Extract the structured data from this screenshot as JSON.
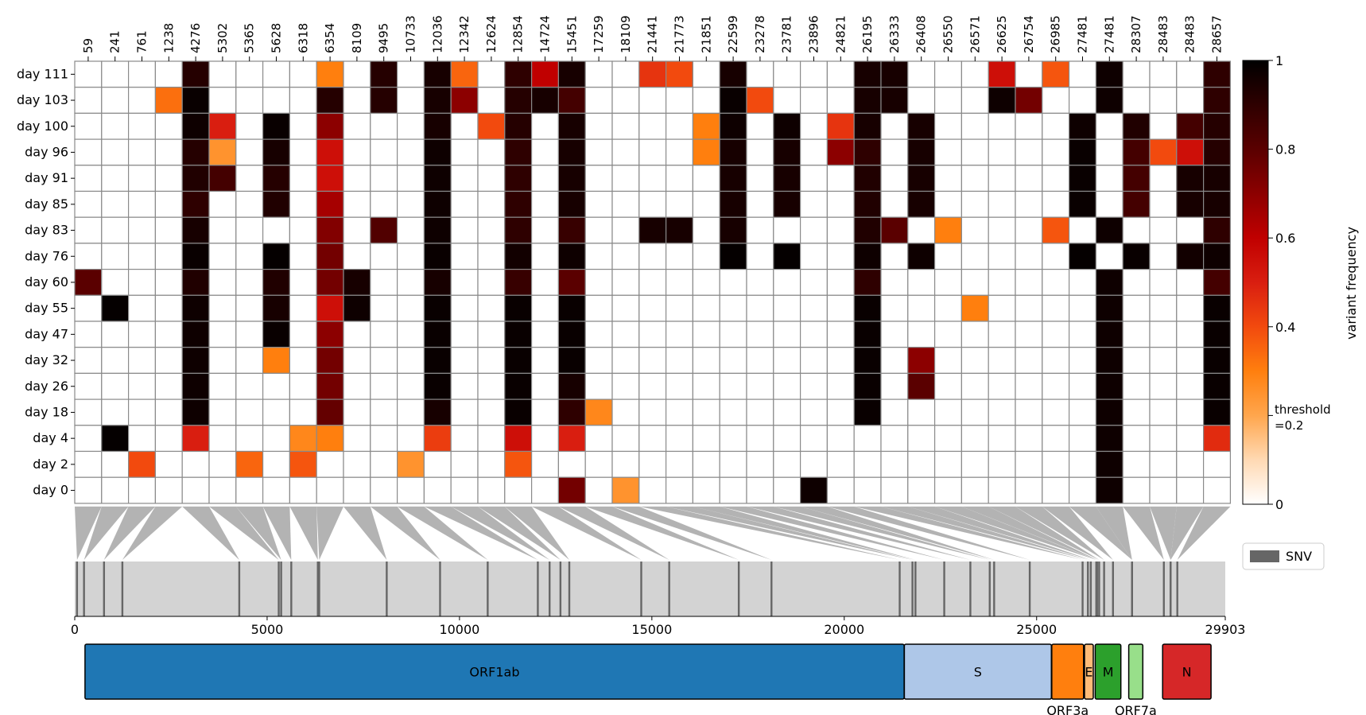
{
  "chart_data": [
    {
      "type": "heatmap",
      "positions": [
        "59",
        "241",
        "761",
        "1238",
        "4276",
        "5302",
        "5365",
        "5628",
        "6318",
        "6354",
        "8109",
        "9495",
        "10733",
        "12036",
        "12342",
        "12624",
        "12854",
        "14724",
        "15451",
        "17259",
        "18109",
        "21441",
        "21773",
        "21851",
        "22599",
        "23278",
        "23781",
        "23896",
        "24821",
        "26195",
        "26333",
        "26408",
        "26550",
        "26571",
        "26625",
        "26754",
        "26985",
        "27481",
        "27481",
        "28307",
        "28483",
        "28483",
        "28657"
      ],
      "days": [
        "day 111",
        "day 103",
        "day 100",
        "day 96",
        "day 91",
        "day 85",
        "day 83",
        "day 76",
        "day 60",
        "day 55",
        "day 47",
        "day 32",
        "day 26",
        "day 18",
        "day 4",
        "day 2",
        "day 0"
      ],
      "cells": [
        [
          0,
          4,
          0.92
        ],
        [
          0,
          9,
          0.3
        ],
        [
          0,
          11,
          0.92
        ],
        [
          0,
          13,
          0.95
        ],
        [
          0,
          14,
          0.35
        ],
        [
          0,
          16,
          0.9
        ],
        [
          0,
          17,
          0.6
        ],
        [
          0,
          18,
          0.95
        ],
        [
          0,
          21,
          0.45
        ],
        [
          0,
          22,
          0.4
        ],
        [
          0,
          24,
          0.95
        ],
        [
          0,
          29,
          0.95
        ],
        [
          0,
          30,
          0.95
        ],
        [
          0,
          34,
          0.55
        ],
        [
          0,
          36,
          0.38
        ],
        [
          0,
          38,
          0.97
        ],
        [
          0,
          42,
          0.9
        ],
        [
          1,
          3,
          0.33
        ],
        [
          1,
          4,
          0.98
        ],
        [
          1,
          9,
          0.92
        ],
        [
          1,
          11,
          0.92
        ],
        [
          1,
          13,
          0.95
        ],
        [
          1,
          14,
          0.7
        ],
        [
          1,
          16,
          0.92
        ],
        [
          1,
          17,
          0.95
        ],
        [
          1,
          18,
          0.85
        ],
        [
          1,
          24,
          0.98
        ],
        [
          1,
          25,
          0.4
        ],
        [
          1,
          29,
          0.95
        ],
        [
          1,
          30,
          0.95
        ],
        [
          1,
          34,
          0.97
        ],
        [
          1,
          35,
          0.75
        ],
        [
          1,
          38,
          0.97
        ],
        [
          1,
          42,
          0.9
        ],
        [
          2,
          4,
          0.97
        ],
        [
          2,
          5,
          0.5
        ],
        [
          2,
          7,
          0.98
        ],
        [
          2,
          9,
          0.7
        ],
        [
          2,
          13,
          0.95
        ],
        [
          2,
          15,
          0.4
        ],
        [
          2,
          16,
          0.92
        ],
        [
          2,
          18,
          0.95
        ],
        [
          2,
          23,
          0.3
        ],
        [
          2,
          24,
          0.97
        ],
        [
          2,
          26,
          0.97
        ],
        [
          2,
          28,
          0.45
        ],
        [
          2,
          29,
          0.95
        ],
        [
          2,
          31,
          0.95
        ],
        [
          2,
          37,
          0.97
        ],
        [
          2,
          39,
          0.93
        ],
        [
          2,
          41,
          0.85
        ],
        [
          2,
          42,
          0.92
        ],
        [
          3,
          4,
          0.92
        ],
        [
          3,
          5,
          0.25
        ],
        [
          3,
          7,
          0.95
        ],
        [
          3,
          9,
          0.55
        ],
        [
          3,
          13,
          0.97
        ],
        [
          3,
          16,
          0.9
        ],
        [
          3,
          18,
          0.95
        ],
        [
          3,
          23,
          0.3
        ],
        [
          3,
          24,
          0.95
        ],
        [
          3,
          26,
          0.95
        ],
        [
          3,
          28,
          0.7
        ],
        [
          3,
          29,
          0.9
        ],
        [
          3,
          31,
          0.95
        ],
        [
          3,
          37,
          0.98
        ],
        [
          3,
          39,
          0.85
        ],
        [
          3,
          40,
          0.4
        ],
        [
          3,
          41,
          0.55
        ],
        [
          3,
          42,
          0.92
        ],
        [
          4,
          4,
          0.93
        ],
        [
          4,
          5,
          0.85
        ],
        [
          4,
          7,
          0.92
        ],
        [
          4,
          9,
          0.55
        ],
        [
          4,
          13,
          0.97
        ],
        [
          4,
          16,
          0.9
        ],
        [
          4,
          18,
          0.95
        ],
        [
          4,
          24,
          0.95
        ],
        [
          4,
          26,
          0.95
        ],
        [
          4,
          29,
          0.93
        ],
        [
          4,
          31,
          0.95
        ],
        [
          4,
          37,
          0.98
        ],
        [
          4,
          39,
          0.85
        ],
        [
          4,
          41,
          0.95
        ],
        [
          4,
          42,
          0.95
        ],
        [
          5,
          4,
          0.9
        ],
        [
          5,
          7,
          0.93
        ],
        [
          5,
          9,
          0.65
        ],
        [
          5,
          13,
          0.97
        ],
        [
          5,
          16,
          0.9
        ],
        [
          5,
          18,
          0.95
        ],
        [
          5,
          24,
          0.95
        ],
        [
          5,
          26,
          0.95
        ],
        [
          5,
          29,
          0.93
        ],
        [
          5,
          31,
          0.95
        ],
        [
          5,
          37,
          0.98
        ],
        [
          5,
          39,
          0.85
        ],
        [
          5,
          41,
          0.95
        ],
        [
          5,
          42,
          0.95
        ],
        [
          6,
          4,
          0.95
        ],
        [
          6,
          9,
          0.72
        ],
        [
          6,
          11,
          0.82
        ],
        [
          6,
          13,
          0.97
        ],
        [
          6,
          16,
          0.9
        ],
        [
          6,
          18,
          0.88
        ],
        [
          6,
          21,
          0.95
        ],
        [
          6,
          22,
          0.95
        ],
        [
          6,
          24,
          0.95
        ],
        [
          6,
          29,
          0.93
        ],
        [
          6,
          30,
          0.8
        ],
        [
          6,
          32,
          0.3
        ],
        [
          6,
          36,
          0.38
        ],
        [
          6,
          38,
          0.97
        ],
        [
          6,
          42,
          0.9
        ],
        [
          7,
          4,
          0.98
        ],
        [
          7,
          7,
          0.99
        ],
        [
          7,
          9,
          0.75
        ],
        [
          7,
          13,
          0.98
        ],
        [
          7,
          16,
          0.96
        ],
        [
          7,
          18,
          0.97
        ],
        [
          7,
          24,
          0.99
        ],
        [
          7,
          26,
          0.99
        ],
        [
          7,
          29,
          0.97
        ],
        [
          7,
          31,
          0.97
        ],
        [
          7,
          37,
          0.99
        ],
        [
          7,
          39,
          0.98
        ],
        [
          7,
          41,
          0.96
        ],
        [
          7,
          42,
          0.97
        ],
        [
          8,
          0,
          0.8
        ],
        [
          8,
          4,
          0.93
        ],
        [
          8,
          7,
          0.93
        ],
        [
          8,
          9,
          0.75
        ],
        [
          8,
          10,
          0.95
        ],
        [
          8,
          13,
          0.95
        ],
        [
          8,
          16,
          0.88
        ],
        [
          8,
          18,
          0.8
        ],
        [
          8,
          29,
          0.9
        ],
        [
          8,
          38,
          0.97
        ],
        [
          8,
          42,
          0.85
        ],
        [
          9,
          1,
          0.99
        ],
        [
          9,
          4,
          0.97
        ],
        [
          9,
          7,
          0.95
        ],
        [
          9,
          9,
          0.55
        ],
        [
          9,
          10,
          0.97
        ],
        [
          9,
          13,
          0.98
        ],
        [
          9,
          16,
          0.98
        ],
        [
          9,
          18,
          0.98
        ],
        [
          9,
          29,
          0.98
        ],
        [
          9,
          33,
          0.3
        ],
        [
          9,
          38,
          0.97
        ],
        [
          9,
          42,
          0.98
        ],
        [
          10,
          4,
          0.97
        ],
        [
          10,
          7,
          0.98
        ],
        [
          10,
          9,
          0.7
        ],
        [
          10,
          13,
          0.98
        ],
        [
          10,
          16,
          0.98
        ],
        [
          10,
          18,
          0.98
        ],
        [
          10,
          29,
          0.98
        ],
        [
          10,
          38,
          0.97
        ],
        [
          10,
          42,
          0.98
        ],
        [
          11,
          4,
          0.97
        ],
        [
          11,
          7,
          0.3
        ],
        [
          11,
          9,
          0.75
        ],
        [
          11,
          13,
          0.98
        ],
        [
          11,
          16,
          0.98
        ],
        [
          11,
          18,
          0.98
        ],
        [
          11,
          29,
          0.98
        ],
        [
          11,
          31,
          0.7
        ],
        [
          11,
          38,
          0.97
        ],
        [
          11,
          42,
          0.98
        ],
        [
          12,
          4,
          0.97
        ],
        [
          12,
          9,
          0.75
        ],
        [
          12,
          13,
          0.98
        ],
        [
          12,
          16,
          0.98
        ],
        [
          12,
          18,
          0.95
        ],
        [
          12,
          29,
          0.98
        ],
        [
          12,
          31,
          0.8
        ],
        [
          12,
          38,
          0.97
        ],
        [
          12,
          42,
          0.98
        ],
        [
          13,
          4,
          0.97
        ],
        [
          13,
          9,
          0.78
        ],
        [
          13,
          13,
          0.95
        ],
        [
          13,
          16,
          0.98
        ],
        [
          13,
          18,
          0.9
        ],
        [
          13,
          19,
          0.28
        ],
        [
          13,
          29,
          0.98
        ],
        [
          13,
          38,
          0.97
        ],
        [
          13,
          42,
          0.98
        ],
        [
          14,
          1,
          0.99
        ],
        [
          14,
          4,
          0.5
        ],
        [
          14,
          8,
          0.28
        ],
        [
          14,
          9,
          0.3
        ],
        [
          14,
          13,
          0.43
        ],
        [
          14,
          16,
          0.55
        ],
        [
          14,
          18,
          0.5
        ],
        [
          14,
          38,
          0.97
        ],
        [
          14,
          42,
          0.47
        ],
        [
          15,
          2,
          0.4
        ],
        [
          15,
          6,
          0.35
        ],
        [
          15,
          8,
          0.38
        ],
        [
          15,
          12,
          0.25
        ],
        [
          15,
          16,
          0.38
        ],
        [
          15,
          38,
          0.97
        ],
        [
          16,
          18,
          0.75
        ],
        [
          16,
          20,
          0.25
        ],
        [
          16,
          27,
          0.97
        ],
        [
          16,
          38,
          0.97
        ]
      ],
      "colorbar": {
        "label": "variant frequency",
        "ticks": [
          "0",
          "0.2",
          "0.4",
          "0.6",
          "0.8",
          "1"
        ],
        "threshold_label": "threshold\n=0.2",
        "range": [
          0,
          1
        ]
      }
    },
    {
      "type": "bar",
      "genome_length": 29903,
      "x_ticks": [
        "0",
        "5000",
        "10000",
        "15000",
        "20000",
        "25000",
        "29903"
      ],
      "snv_positions": [
        59,
        241,
        761,
        1238,
        4276,
        5302,
        5365,
        5628,
        6318,
        6354,
        8109,
        9495,
        10733,
        12036,
        12342,
        12624,
        12854,
        14724,
        15451,
        17259,
        18109,
        21441,
        21773,
        21851,
        22599,
        23278,
        23781,
        23896,
        24821,
        26195,
        26333,
        26408,
        26550,
        26571,
        26625,
        26754,
        26985,
        27481,
        27481,
        28307,
        28483,
        28483,
        28657
      ],
      "legend": "SNV",
      "genes": [
        {
          "name": "ORF1ab",
          "start": 266,
          "end": 21555,
          "color": "#1f77b4",
          "label_pos": "inside"
        },
        {
          "name": "S",
          "start": 21563,
          "end": 25384,
          "color": "#aec7e8",
          "label_pos": "inside"
        },
        {
          "name": "ORF3a",
          "start": 25393,
          "end": 26220,
          "color": "#ff7f0e",
          "label_pos": "below"
        },
        {
          "name": "E",
          "start": 26245,
          "end": 26472,
          "color": "#ffbb78",
          "label_pos": "inside"
        },
        {
          "name": "M",
          "start": 26523,
          "end": 27191,
          "color": "#2ca02c",
          "label_pos": "inside"
        },
        {
          "name": "ORF7a",
          "start": 27394,
          "end": 27759,
          "color": "#98df8a",
          "label_pos": "below"
        },
        {
          "name": "N",
          "start": 28274,
          "end": 29533,
          "color": "#d62728",
          "label_pos": "inside"
        }
      ]
    }
  ]
}
